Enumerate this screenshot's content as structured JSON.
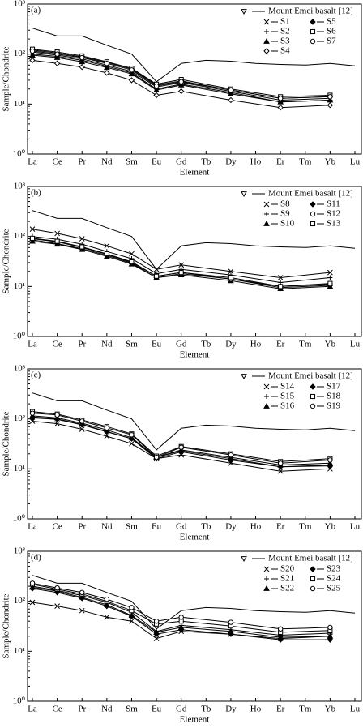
{
  "chart_data": [
    {
      "type": "line",
      "panel_label": "(a)",
      "xlabel": "Element",
      "ylabel": "Sample/Chondrite",
      "log_scale": true,
      "categories": [
        "La",
        "Ce",
        "Pr",
        "Nd",
        "Sm",
        "Eu",
        "Gd",
        "Tb",
        "Dy",
        "Ho",
        "Er",
        "Tm",
        "Yb",
        "Lu"
      ],
      "ylim": [
        1,
        1000
      ],
      "yticks": [
        {
          "value": 1,
          "label": "10⁰"
        },
        {
          "value": 10,
          "label": "10¹"
        },
        {
          "value": 100,
          "label": "10²"
        },
        {
          "value": 1000,
          "label": "10³"
        }
      ],
      "series": [
        {
          "name": "Mount Emei basalt [12]",
          "color": "#000",
          "marker": "triangle-down",
          "markers_on_line": false,
          "values": [
            330,
            230,
            230,
            150,
            100,
            28,
            65,
            75,
            72,
            65,
            62,
            60,
            65,
            58
          ]
        },
        {
          "name": "S1",
          "color": "#000",
          "marker": "x",
          "values": [
            110,
            95,
            80,
            60,
            45,
            22,
            27,
            null,
            18,
            null,
            12,
            null,
            13,
            null
          ]
        },
        {
          "name": "S2",
          "color": "#000",
          "marker": "plus",
          "values": [
            100,
            90,
            75,
            57,
            42,
            20,
            25,
            null,
            17,
            null,
            11,
            null,
            12,
            null
          ]
        },
        {
          "name": "S3",
          "color": "#000",
          "marker": "triangle",
          "values": [
            95,
            85,
            70,
            54,
            40,
            19,
            24,
            null,
            16,
            null,
            11,
            null,
            12,
            null
          ]
        },
        {
          "name": "S4",
          "color": "#000",
          "marker": "diamond-open",
          "values": [
            75,
            65,
            55,
            42,
            30,
            15,
            18,
            null,
            12,
            null,
            8.5,
            null,
            9.5,
            null
          ]
        },
        {
          "name": "S5",
          "color": "#000",
          "marker": "diamond",
          "values": [
            120,
            105,
            88,
            68,
            50,
            24,
            29,
            null,
            19,
            null,
            13,
            null,
            14,
            null
          ]
        },
        {
          "name": "S6",
          "color": "#000",
          "marker": "square",
          "values": [
            125,
            110,
            92,
            70,
            52,
            25,
            31,
            null,
            20,
            null,
            14,
            null,
            15,
            null
          ]
        },
        {
          "name": "S7",
          "color": "#000",
          "marker": "circle",
          "values": [
            115,
            100,
            85,
            65,
            48,
            23,
            28,
            null,
            19,
            null,
            13,
            null,
            14,
            null
          ]
        }
      ]
    },
    {
      "type": "line",
      "panel_label": "(b)",
      "xlabel": "Element",
      "ylabel": "Sample/Chondrite",
      "log_scale": true,
      "categories": [
        "La",
        "Ce",
        "Pr",
        "Nd",
        "Sm",
        "Eu",
        "Gd",
        "Tb",
        "Dy",
        "Ho",
        "Er",
        "Tm",
        "Yb",
        "Lu"
      ],
      "ylim": [
        1,
        1000
      ],
      "yticks": [
        {
          "value": 1,
          "label": "10⁰"
        },
        {
          "value": 10,
          "label": "10¹"
        },
        {
          "value": 100,
          "label": "10²"
        },
        {
          "value": 1000,
          "label": "10³"
        }
      ],
      "series": [
        {
          "name": "Mount Emei basalt [12]",
          "color": "#000",
          "marker": "triangle-down",
          "markers_on_line": false,
          "values": [
            330,
            230,
            230,
            150,
            100,
            22,
            65,
            75,
            72,
            65,
            62,
            60,
            65,
            58
          ]
        },
        {
          "name": "S8",
          "color": "#000",
          "marker": "x",
          "values": [
            140,
            115,
            90,
            65,
            45,
            22,
            27,
            null,
            20,
            null,
            15,
            null,
            19,
            null
          ]
        },
        {
          "name": "S9",
          "color": "#000",
          "marker": "plus",
          "values": [
            100,
            88,
            70,
            50,
            36,
            18,
            22,
            null,
            17,
            null,
            12,
            null,
            15,
            null
          ]
        },
        {
          "name": "S10",
          "color": "#000",
          "marker": "triangle",
          "values": [
            80,
            70,
            55,
            40,
            28,
            15,
            17,
            null,
            13,
            null,
            9,
            null,
            10,
            null
          ]
        },
        {
          "name": "S11",
          "color": "#000",
          "marker": "diamond",
          "values": [
            85,
            72,
            57,
            42,
            29,
            15,
            18,
            null,
            14,
            null,
            9.5,
            null,
            10.5,
            null
          ]
        },
        {
          "name": "S12",
          "color": "#000",
          "marker": "circle",
          "values": [
            90,
            78,
            60,
            44,
            30,
            16,
            19,
            null,
            14,
            null,
            10,
            null,
            11,
            null
          ]
        },
        {
          "name": "S13",
          "color": "#000",
          "marker": "square",
          "values": [
            92,
            80,
            62,
            45,
            31,
            16,
            19,
            null,
            15,
            null,
            10,
            null,
            11.5,
            null
          ]
        }
      ]
    },
    {
      "type": "line",
      "panel_label": "(c)",
      "xlabel": "Element",
      "ylabel": "Sample/Chondrite",
      "log_scale": true,
      "categories": [
        "La",
        "Ce",
        "Pr",
        "Nd",
        "Sm",
        "Eu",
        "Gd",
        "Tb",
        "Dy",
        "Ho",
        "Er",
        "Tm",
        "Yb",
        "Lu"
      ],
      "ylim": [
        1,
        1000
      ],
      "yticks": [
        {
          "value": 1,
          "label": "10⁰"
        },
        {
          "value": 10,
          "label": "10¹"
        },
        {
          "value": 100,
          "label": "10²"
        },
        {
          "value": 1000,
          "label": "10³"
        }
      ],
      "series": [
        {
          "name": "Mount Emei basalt [12]",
          "color": "#000",
          "marker": "triangle-down",
          "markers_on_line": false,
          "values": [
            330,
            230,
            230,
            150,
            100,
            24,
            65,
            75,
            72,
            65,
            62,
            60,
            65,
            58
          ]
        },
        {
          "name": "S14",
          "color": "#000",
          "marker": "x",
          "values": [
            90,
            80,
            62,
            45,
            32,
            16,
            19,
            null,
            13,
            null,
            9,
            null,
            10,
            null
          ]
        },
        {
          "name": "S15",
          "color": "#000",
          "marker": "plus",
          "values": [
            110,
            100,
            78,
            56,
            40,
            17,
            23,
            null,
            16,
            null,
            11,
            null,
            12,
            null
          ]
        },
        {
          "name": "S16",
          "color": "#000",
          "marker": "triangle",
          "values": [
            115,
            105,
            82,
            60,
            42,
            17,
            24,
            null,
            17,
            null,
            12,
            null,
            13,
            null
          ]
        },
        {
          "name": "S17",
          "color": "#000",
          "marker": "diamond",
          "values": [
            105,
            98,
            76,
            55,
            40,
            16,
            22,
            null,
            15,
            null,
            11,
            null,
            11.5,
            null
          ]
        },
        {
          "name": "S18",
          "color": "#000",
          "marker": "square",
          "values": [
            140,
            125,
            95,
            70,
            50,
            18,
            28,
            null,
            20,
            null,
            14,
            null,
            16,
            null
          ]
        },
        {
          "name": "S19",
          "color": "#000",
          "marker": "circle",
          "values": [
            130,
            120,
            90,
            66,
            48,
            17,
            27,
            null,
            19,
            null,
            13,
            null,
            15,
            null
          ]
        }
      ]
    },
    {
      "type": "line",
      "panel_label": "(d)",
      "xlabel": "Element",
      "ylabel": "Sample/Chondrite",
      "log_scale": true,
      "categories": [
        "La",
        "Ce",
        "Pr",
        "Nd",
        "Sm",
        "Eu",
        "Gd",
        "Tb",
        "Dy",
        "Ho",
        "Er",
        "Tm",
        "Yb",
        "Lu"
      ],
      "ylim": [
        1,
        1000
      ],
      "yticks": [
        {
          "value": 1,
          "label": "10⁰"
        },
        {
          "value": 10,
          "label": "10¹"
        },
        {
          "value": 100,
          "label": "10²"
        },
        {
          "value": 1000,
          "label": "10³"
        }
      ],
      "series": [
        {
          "name": "Mount Emei basalt [12]",
          "color": "#000",
          "marker": "triangle-down",
          "markers_on_line": false,
          "values": [
            330,
            230,
            230,
            150,
            100,
            28,
            65,
            75,
            72,
            65,
            62,
            60,
            65,
            58
          ]
        },
        {
          "name": "S20",
          "color": "#000",
          "marker": "x",
          "values": [
            95,
            80,
            65,
            48,
            40,
            18,
            25,
            null,
            22,
            null,
            18,
            null,
            20,
            null
          ]
        },
        {
          "name": "S21",
          "color": "#000",
          "marker": "plus",
          "values": [
            200,
            165,
            130,
            95,
            60,
            25,
            33,
            null,
            27,
            null,
            21,
            null,
            23,
            null
          ]
        },
        {
          "name": "S22",
          "color": "#000",
          "marker": "triangle",
          "values": [
            190,
            160,
            120,
            85,
            52,
            24,
            30,
            null,
            25,
            null,
            19,
            null,
            20,
            null
          ]
        },
        {
          "name": "S23",
          "color": "#000",
          "marker": "diamond",
          "values": [
            180,
            150,
            115,
            80,
            50,
            22,
            27,
            null,
            22,
            null,
            17,
            null,
            17,
            null
          ]
        },
        {
          "name": "S24",
          "color": "#000",
          "marker": "square",
          "values": [
            220,
            175,
            140,
            100,
            65,
            35,
            40,
            null,
            32,
            null,
            24,
            null,
            26,
            null
          ]
        },
        {
          "name": "S25",
          "color": "#000",
          "marker": "circle",
          "values": [
            230,
            185,
            150,
            110,
            75,
            40,
            48,
            null,
            38,
            null,
            28,
            null,
            30,
            null
          ]
        }
      ]
    }
  ]
}
